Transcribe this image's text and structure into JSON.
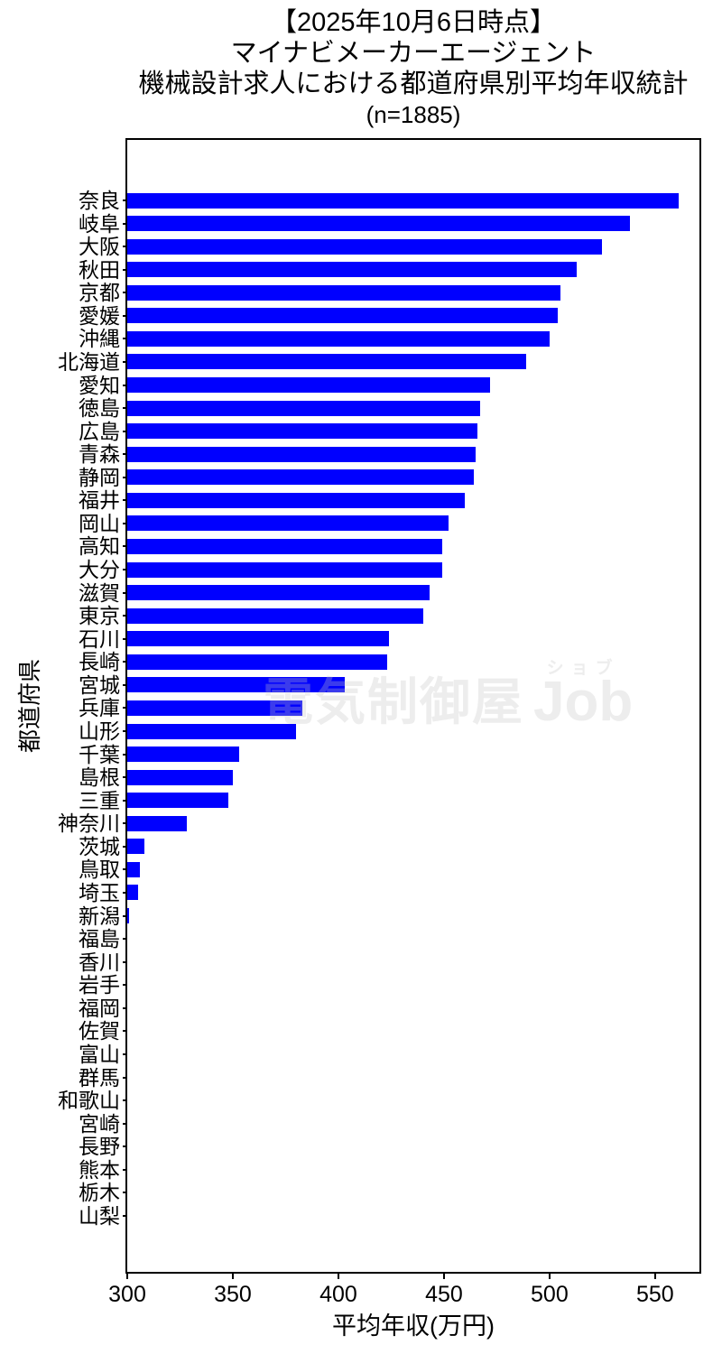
{
  "chart_data": {
    "type": "bar",
    "orientation": "horizontal",
    "title_lines": [
      "【2025年10月6日時点】",
      "マイナビメーカーエージェント",
      "機械設計求人における都道府県別平均年収統計",
      "(n=1885)"
    ],
    "xlabel": "平均年収(万円)",
    "ylabel": "都道府県",
    "xlim": [
      300,
      571
    ],
    "xticks": [
      300,
      350,
      400,
      450,
      500,
      550
    ],
    "grid": false,
    "legend": false,
    "bar_color": "#0000ff",
    "categories": [
      "奈良",
      "岐阜",
      "大阪",
      "秋田",
      "京都",
      "愛媛",
      "沖縄",
      "北海道",
      "愛知",
      "徳島",
      "広島",
      "青森",
      "静岡",
      "福井",
      "岡山",
      "高知",
      "大分",
      "滋賀",
      "東京",
      "石川",
      "長崎",
      "宮城",
      "兵庫",
      "山形",
      "千葉",
      "島根",
      "三重",
      "神奈川",
      "茨城",
      "鳥取",
      "埼玉",
      "新潟",
      "福島",
      "香川",
      "岩手",
      "福岡",
      "佐賀",
      "富山",
      "群馬",
      "和歌山",
      "宮崎",
      "長野",
      "熊本",
      "栃木",
      "山梨"
    ],
    "values": [
      561,
      538,
      525,
      513,
      505,
      504,
      500,
      489,
      472,
      467,
      466,
      465,
      464,
      460,
      452,
      449,
      449,
      443,
      440,
      424,
      423,
      403,
      383,
      380,
      353,
      350,
      348,
      328,
      308,
      306,
      305,
      301,
      300,
      300,
      300,
      300,
      300,
      300,
      300,
      300,
      300,
      300,
      300,
      300,
      300
    ]
  },
  "watermark": {
    "main": "電気制御屋",
    "furigana": "ショブ",
    "latin": "Job"
  }
}
